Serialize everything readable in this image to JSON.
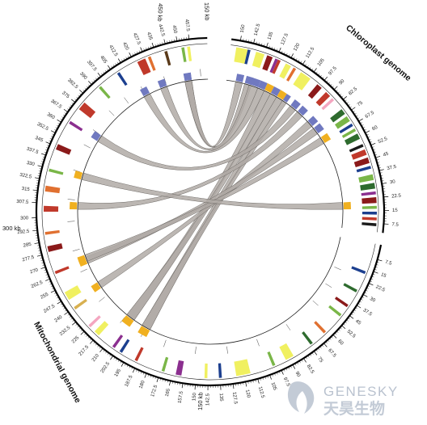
{
  "genomes": {
    "chloroplast": {
      "title": "Chloroplast genome",
      "scale_label": "150 kb",
      "tick_labels": [
        "150",
        "142.5",
        "135",
        "127.5",
        "120",
        "112.5",
        "105",
        "97.5",
        "90",
        "82.5",
        "75",
        "67.5",
        "60",
        "52.5",
        "45",
        "37.5",
        "30",
        "22.5",
        "15",
        "7.5"
      ]
    },
    "mitochondrial": {
      "title": "Mitochondrial genome",
      "scale_labels": [
        "150 kb",
        "300 kb",
        "450 kb"
      ],
      "tick_labels_bottom": [
        "7.5",
        "15",
        "22.5",
        "30",
        "37.5",
        "45",
        "52.5",
        "60",
        "67.5",
        "75",
        "82.5",
        "90",
        "97.5",
        "105",
        "112.5",
        "120",
        "127.5",
        "135",
        "142.5",
        "150",
        "157.5",
        "165",
        "172.5",
        "180",
        "187.5",
        "195",
        "202.5",
        "210",
        "217.5",
        "225",
        "232.5",
        "240",
        "247.5",
        "255",
        "262.5",
        "270",
        "277.5",
        "285",
        "292.5",
        "300"
      ],
      "tick_labels_upper_left": [
        "307.5",
        "315",
        "322.5",
        "330",
        "337.5",
        "345",
        "352.5",
        "360",
        "367.5",
        "375",
        "382.5",
        "390",
        "397.5",
        "405",
        "412.5",
        "420",
        "427.5",
        "435",
        "442.5",
        "450",
        "457.5"
      ]
    }
  },
  "colors": {
    "gene_blocks": [
      "#f0f060",
      "#d8b050",
      "#8b1a1a",
      "#c0392b",
      "#2e6b2e",
      "#7ab648",
      "#1c3f8f",
      "#8b2f8f",
      "#e07030",
      "#f4a6c0",
      "#5a3a1a",
      "#1a1a1a"
    ],
    "link_fill": "#b0aaa6",
    "link_stroke": "#6e6a66",
    "anchor_blue": "#7079c0",
    "anchor_gold": "#f0b020",
    "axis": "#000000"
  },
  "logo": {
    "text_en": "GENESKY",
    "text_cn": "天昊生物"
  }
}
